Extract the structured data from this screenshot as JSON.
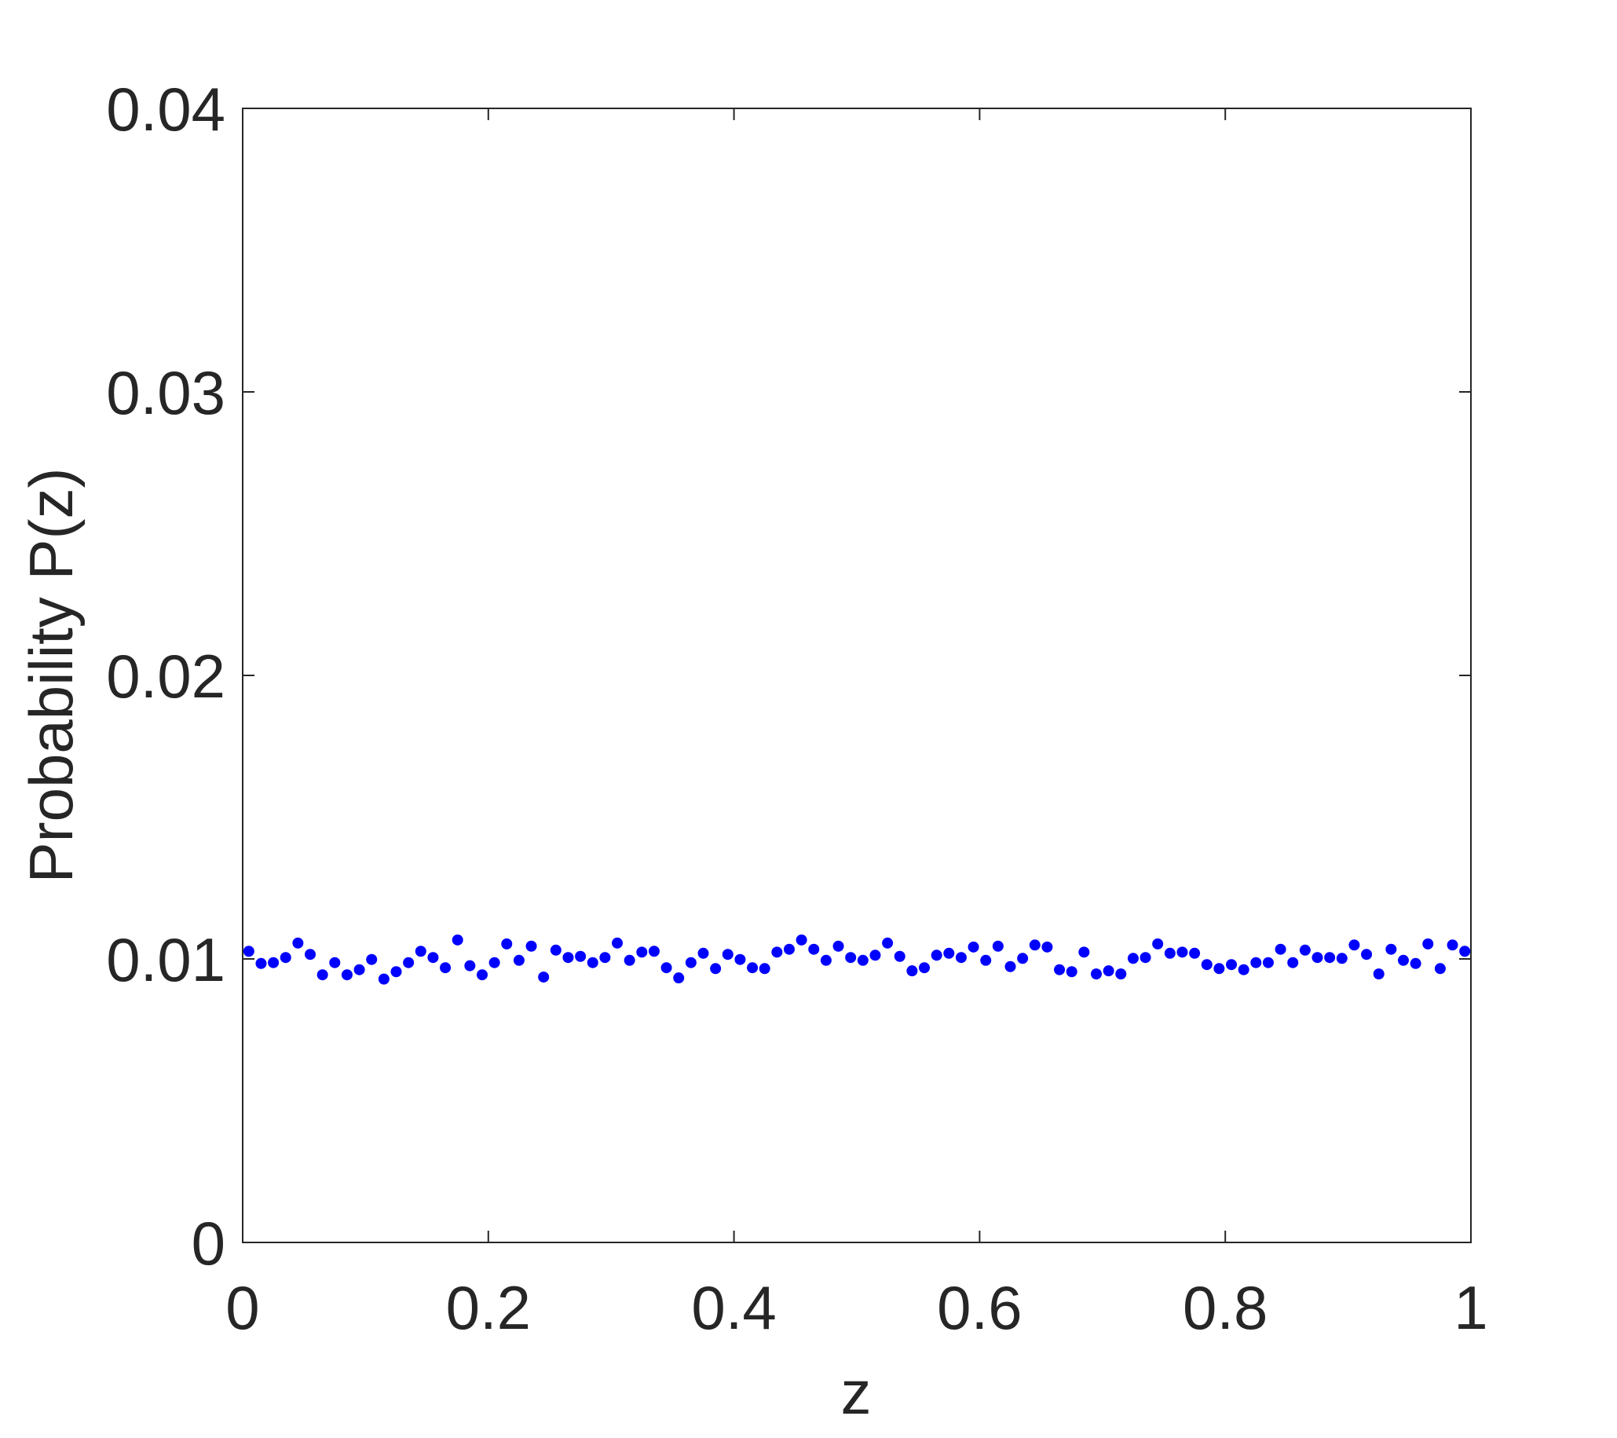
{
  "chart_data": {
    "type": "scatter",
    "xlabel": "z",
    "ylabel": "Probability P(z)",
    "color": "#0000ff",
    "x": [
      0.005,
      0.015,
      0.025,
      0.035,
      0.045,
      0.055,
      0.065,
      0.075,
      0.085,
      0.095,
      0.105,
      0.115,
      0.125,
      0.135,
      0.145,
      0.155,
      0.165,
      0.175,
      0.185,
      0.195,
      0.205,
      0.215,
      0.225,
      0.235,
      0.245,
      0.255,
      0.265,
      0.275,
      0.285,
      0.295,
      0.305,
      0.315,
      0.325,
      0.335,
      0.345,
      0.355,
      0.365,
      0.375,
      0.385,
      0.395,
      0.405,
      0.415,
      0.425,
      0.435,
      0.445,
      0.455,
      0.465,
      0.475,
      0.485,
      0.495,
      0.505,
      0.515,
      0.525,
      0.535,
      0.545,
      0.555,
      0.565,
      0.575,
      0.585,
      0.595,
      0.605,
      0.615,
      0.625,
      0.635,
      0.645,
      0.655,
      0.665,
      0.675,
      0.685,
      0.695,
      0.705,
      0.715,
      0.725,
      0.735,
      0.745,
      0.755,
      0.765,
      0.775,
      0.785,
      0.795,
      0.805,
      0.815,
      0.825,
      0.835,
      0.845,
      0.855,
      0.865,
      0.875,
      0.885,
      0.895,
      0.905,
      0.915,
      0.925,
      0.935,
      0.945,
      0.955,
      0.965,
      0.975,
      0.985,
      0.995
    ],
    "values": [
      0.01027,
      0.00984,
      0.00987,
      0.01005,
      0.01056,
      0.01016,
      0.00944,
      0.00987,
      0.00944,
      0.00962,
      0.00998,
      0.00929,
      0.00955,
      0.00987,
      0.01027,
      0.01005,
      0.00969,
      0.01067,
      0.00976,
      0.00944,
      0.00987,
      0.01053,
      0.00995,
      0.01045,
      0.00936,
      0.01031,
      0.01005,
      0.01009,
      0.00987,
      0.01005,
      0.01056,
      0.00995,
      0.01024,
      0.01027,
      0.00969,
      0.00933,
      0.00987,
      0.0102,
      0.00966,
      0.01016,
      0.00998,
      0.00969,
      0.00966,
      0.01024,
      0.01034,
      0.01067,
      0.01034,
      0.00995,
      0.01045,
      0.01005,
      0.00995,
      0.01013,
      0.01056,
      0.01009,
      0.00958,
      0.00969,
      0.01013,
      0.0102,
      0.01005,
      0.01042,
      0.00995,
      0.01045,
      0.00973,
      0.01002,
      0.01049,
      0.01042,
      0.00962,
      0.00955,
      0.01024,
      0.00947,
      0.00958,
      0.00947,
      0.01002,
      0.01005,
      0.01053,
      0.0102,
      0.01024,
      0.0102,
      0.0098,
      0.00966,
      0.0098,
      0.00962,
      0.00987,
      0.00987,
      0.01034,
      0.00987,
      0.01031,
      0.01005,
      0.01005,
      0.01002,
      0.01049,
      0.01016,
      0.00947,
      0.01034,
      0.00995,
      0.00984,
      0.01053,
      0.00966,
      0.01049,
      0.01027
    ],
    "xlim": [
      0,
      1
    ],
    "xticks": [
      0,
      0.2,
      0.4,
      0.6,
      0.8,
      1
    ],
    "ylim": [
      0,
      0.04
    ],
    "yticks": [
      0,
      0.01,
      0.02,
      0.03,
      0.04
    ]
  }
}
